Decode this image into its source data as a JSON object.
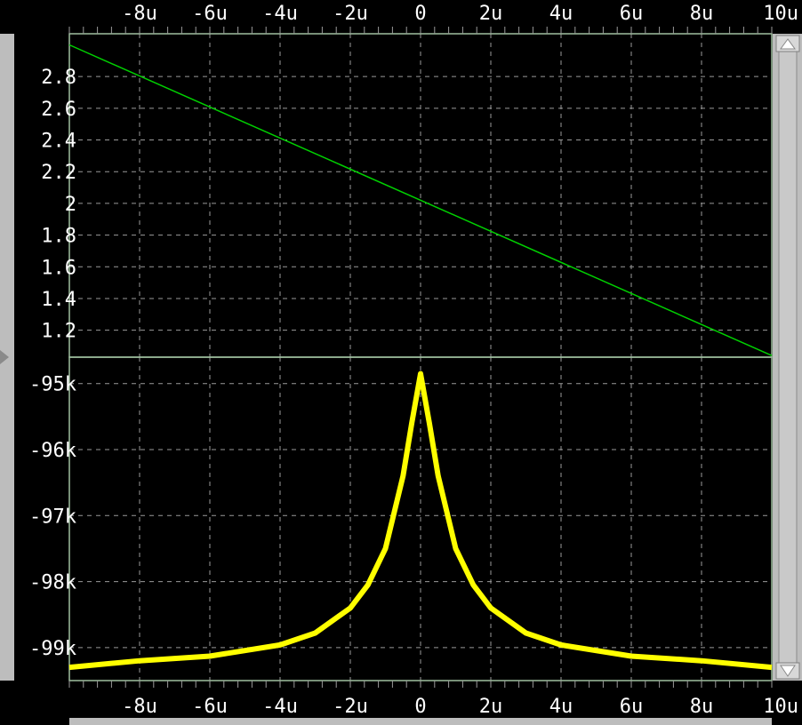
{
  "chart_data": [
    {
      "type": "line",
      "x_tick_labels": [
        "-8u",
        "-6u",
        "-4u",
        "-2u",
        "0",
        "2u",
        "4u",
        "6u",
        "8u",
        "10u"
      ],
      "x_ticks": [
        -8,
        -6,
        -4,
        -2,
        0,
        2,
        4,
        6,
        8,
        10
      ],
      "xlim": [
        -10,
        10
      ],
      "y_tick_labels": [
        "2.8",
        "2.6",
        "2.4",
        "2.2",
        "2",
        "1.8",
        "1.6",
        "1.4",
        "1.2"
      ],
      "y_ticks": [
        2.8,
        2.6,
        2.4,
        2.2,
        2.0,
        1.8,
        1.6,
        1.4,
        1.2
      ],
      "ylim": [
        1.03,
        3.07
      ],
      "grid": true,
      "series": [
        {
          "color": "#00d000",
          "x": [
            -10,
            10
          ],
          "y": [
            3.0,
            1.04
          ]
        }
      ]
    },
    {
      "type": "line",
      "x_tick_labels": [
        "-8u",
        "-6u",
        "-4u",
        "-2u",
        "0",
        "2u",
        "4u",
        "6u",
        "8u",
        "10u"
      ],
      "x_ticks": [
        -8,
        -6,
        -4,
        -2,
        0,
        2,
        4,
        6,
        8,
        10
      ],
      "xlim": [
        -10,
        10
      ],
      "y_tick_labels": [
        "-95k",
        "-96k",
        "-97k",
        "-98k",
        "-99k"
      ],
      "y_ticks": [
        -95000,
        -96000,
        -97000,
        -98000,
        -99000
      ],
      "ylim": [
        -99500,
        -94600
      ],
      "grid": true,
      "series": [
        {
          "color": "#ffff00",
          "x": [
            -10,
            -8,
            -6,
            -4,
            -3,
            -2,
            -1.5,
            -1,
            -0.5,
            -0.25,
            0,
            0.25,
            0.5,
            1,
            1.5,
            2,
            3,
            4,
            6,
            8,
            10
          ],
          "y": [
            -99300,
            -99200,
            -99130,
            -98960,
            -98780,
            -98400,
            -98050,
            -97500,
            -96400,
            -95600,
            -94850,
            -95600,
            -96400,
            -97500,
            -98050,
            -98400,
            -98780,
            -98960,
            -99130,
            -99200,
            -99300
          ]
        }
      ]
    }
  ],
  "colors": {
    "background": "#000000",
    "grid": "#9a9a9a",
    "frame": "#9fc09f",
    "text": "#ffffff",
    "scrollbar": "#bdbdbd"
  }
}
